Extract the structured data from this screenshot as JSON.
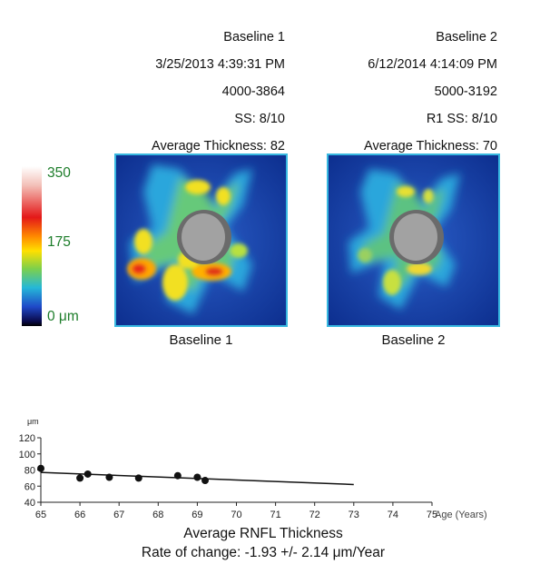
{
  "baselines": [
    {
      "label": "Baseline 1",
      "datetime": "3/25/2013 4:39:31 PM",
      "serial": "4000-3864",
      "ss": "SS: 8/10",
      "thickness": "Average Thickness: 82",
      "map_caption": "Baseline 1"
    },
    {
      "label": "Baseline 2",
      "datetime": "6/12/2014 4:14:09 PM",
      "serial": "5000-3192",
      "ss": "R1   SS: 8/10",
      "thickness": "Average Thickness: 70",
      "map_caption": "Baseline 2"
    }
  ],
  "scale": {
    "max": "350",
    "mid": "175",
    "min": "0 μm"
  },
  "colors": {
    "map_border": "#38b8e0",
    "map_bg": "#0e3a9a",
    "disc": "#9a9a9a",
    "scale_label": "#1d7d2a"
  },
  "chart_data": {
    "type": "scatter",
    "title": "Average RNFL Thickness",
    "subtitle": "Rate of change: -1.93 +/- 2.14 μm/Year",
    "ylabel": "μm",
    "xlabel": "Age (Years)",
    "xlim": [
      65,
      75
    ],
    "ylim": [
      40,
      120
    ],
    "x_ticks": [
      65,
      66,
      67,
      68,
      69,
      70,
      71,
      72,
      73,
      74,
      75
    ],
    "y_ticks": [
      40,
      60,
      80,
      100,
      120
    ],
    "points": [
      {
        "x": 65.0,
        "y": 82
      },
      {
        "x": 66.0,
        "y": 70
      },
      {
        "x": 66.2,
        "y": 75
      },
      {
        "x": 66.75,
        "y": 71
      },
      {
        "x": 67.5,
        "y": 70
      },
      {
        "x": 68.5,
        "y": 73
      },
      {
        "x": 69.0,
        "y": 71
      },
      {
        "x": 69.2,
        "y": 67
      }
    ],
    "trend": {
      "x": [
        65,
        73
      ],
      "y": [
        77,
        62
      ]
    },
    "grid": false
  }
}
